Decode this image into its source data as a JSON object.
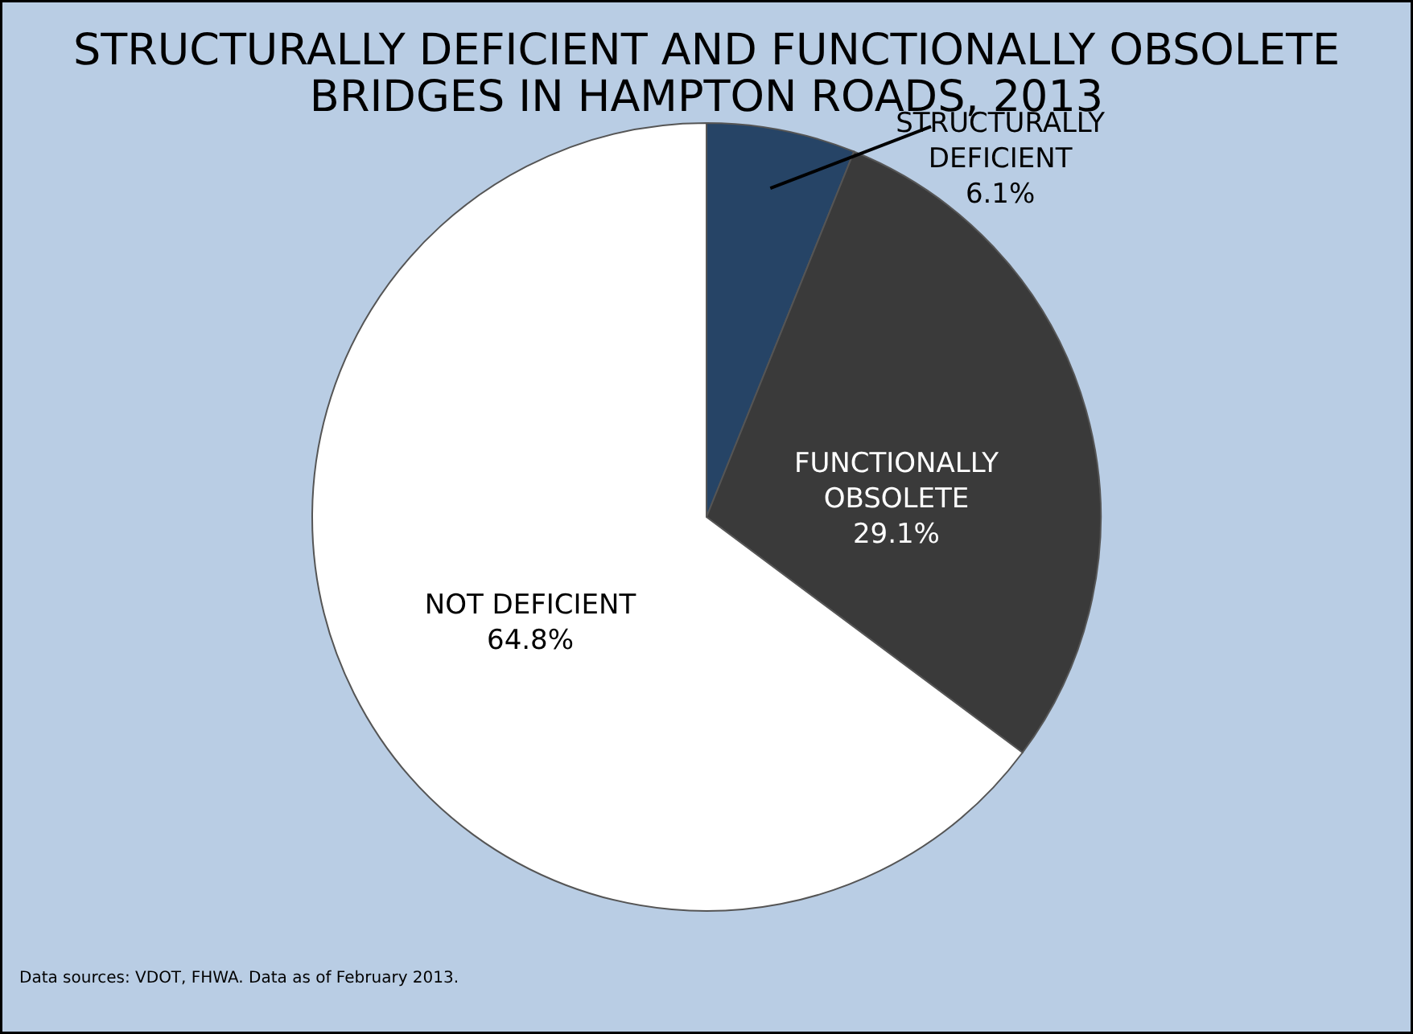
{
  "chart_data": {
    "type": "pie",
    "title": [
      "STRUCTURALLY DEFICIENT AND FUNCTIONALLY OBSOLETE",
      "BRIDGES IN HAMPTON ROADS, 2013"
    ],
    "categories": [
      "STRUCTURALLY DEFICIENT",
      "FUNCTIONALLY OBSOLETE",
      "NOT DEFICIENT"
    ],
    "values": [
      6.1,
      29.1,
      64.8
    ],
    "colors": [
      "#264466",
      "#3a3a3a",
      "#ffffff"
    ],
    "value_labels": [
      "6.1%",
      "29.1%",
      "64.8%"
    ],
    "annotations": [
      "Data sources:  VDOT, FHWA.  Data as of February 2013."
    ]
  }
}
